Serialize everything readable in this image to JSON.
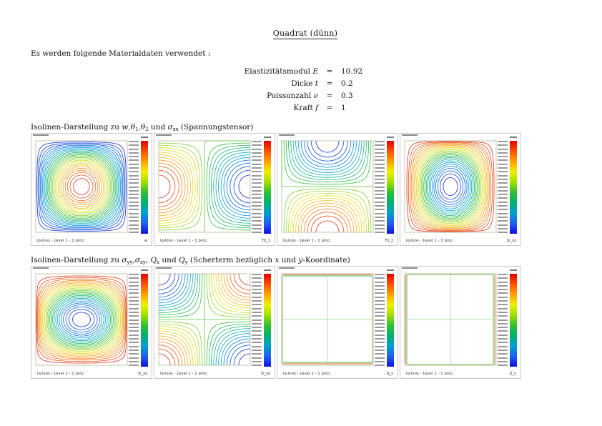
{
  "title": "Quadrat (dünn)",
  "intro": "Es werden folgende Materialdaten verwendet :",
  "params": [
    {
      "label": "Elastizitätsmodul",
      "symbol": "E",
      "eq": "=",
      "value": "10.92"
    },
    {
      "label": "Dicke",
      "symbol": "t",
      "eq": "=",
      "value": "0.2"
    },
    {
      "label": "Poissonzahl",
      "symbol": "ν",
      "eq": "=",
      "value": "0.3"
    },
    {
      "label": "Kraft",
      "symbol": "f",
      "eq": "=",
      "value": "1"
    }
  ],
  "captions": [
    [
      {
        "t": "Isolinen-Darstellung zu "
      },
      {
        "t": "w",
        "i": true
      },
      {
        "t": ","
      },
      {
        "t": "θ",
        "i": true,
        "sub": "1"
      },
      {
        "t": ","
      },
      {
        "t": "θ",
        "i": true,
        "sub": "2"
      },
      {
        "t": " und "
      },
      {
        "t": "σ",
        "i": true,
        "sub": "xx"
      },
      {
        "t": " (Spannungstensor)"
      }
    ],
    [
      {
        "t": "Isolinen-Darstellung zu "
      },
      {
        "t": "σ",
        "i": true,
        "sub": "yy"
      },
      {
        "t": ","
      },
      {
        "t": "σ",
        "i": true,
        "sub": "xy"
      },
      {
        "t": ", "
      },
      {
        "t": "Q",
        "i": true,
        "sub": "x"
      },
      {
        "t": " und "
      },
      {
        "t": "Q",
        "i": true,
        "sub": "y"
      },
      {
        "t": " (Scherterm bezüglich "
      },
      {
        "t": "x",
        "i": true
      },
      {
        "t": " und "
      },
      {
        "t": "y",
        "i": true
      },
      {
        "t": "-Koordinate)"
      }
    ]
  ],
  "panels": [
    {
      "field": "w",
      "variable": "w",
      "footer": "iq-loos - Level 1 - 1 proc."
    },
    {
      "field": "th1",
      "variable": "Th_1",
      "footer": "iq-loos - Level 1 - 1 proc."
    },
    {
      "field": "th2",
      "variable": "Th_2",
      "footer": "iq-loos - Level 1 - 1 proc."
    },
    {
      "field": "sxx",
      "variable": "Si_xx",
      "footer": "iq-loos - Level 1 - 1 proc."
    },
    {
      "field": "syy",
      "variable": "Si_yy",
      "footer": "iq-loos - Level 1 - 1 proc."
    },
    {
      "field": "sxy",
      "variable": "Si_xy",
      "footer": "iq-loos - Level 1 - 1 proc."
    },
    {
      "field": "qx",
      "variable": "Q_x",
      "footer": "iq-loos - Level 1 - 1 proc."
    },
    {
      "field": "qy",
      "variable": "Q_y",
      "footer": "iq-loos - Level 1 - 1 proc."
    }
  ],
  "colors": {
    "frame": "#c8c8c8",
    "plot_border": "#b8b89a",
    "text": "#111111"
  }
}
